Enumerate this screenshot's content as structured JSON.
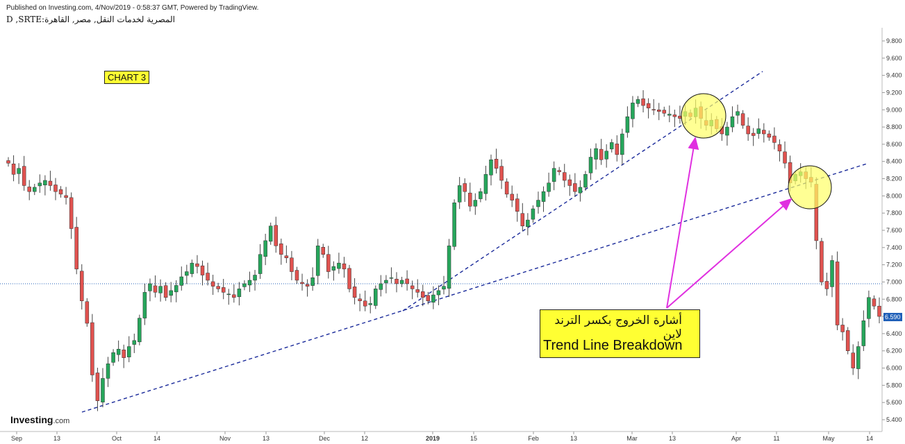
{
  "header": {
    "published": "Published on Investing.com, 4/Nov/2019 - 0:58:37 GMT, Powered by TradingView.",
    "symbol": "D ,SRTE:المصرية لخدمات النقل, مصر, القاهرة"
  },
  "labels": {
    "chart_tag": "CHART 3",
    "note_ar": "أشارة الخروج بكسر الترند لاين",
    "note_en": "Trend Line Breakdown",
    "logo_main": "Investing",
    "logo_suffix": ".com",
    "last_price": "6.590"
  },
  "colors": {
    "up": "#26a65b",
    "down": "#e0524f",
    "trend_line": "#1a2a9a",
    "arrow": "#e030e0",
    "highlight": "#ffff66",
    "price_line": "#1f5fb8"
  },
  "chart_data": {
    "type": "candlestick",
    "title": "",
    "ylabel": "",
    "xlabel": "",
    "ylim": [
      5.4,
      9.8
    ],
    "y_ticks": [
      "5.400",
      "5.600",
      "5.800",
      "6.000",
      "6.200",
      "6.400",
      "6.600",
      "6.800",
      "7.000",
      "7.200",
      "7.400",
      "7.600",
      "7.800",
      "8.000",
      "8.200",
      "8.400",
      "8.600",
      "8.800",
      "9.000",
      "9.200",
      "9.400",
      "9.600",
      "9.800"
    ],
    "x_ticks": [
      "Sep",
      "13",
      "Oct",
      "14",
      "Nov",
      "13",
      "Dec",
      "12",
      "2019",
      "15",
      "Feb",
      "13",
      "Mar",
      "13",
      "Apr",
      "11",
      "May",
      "14"
    ],
    "last_price": 6.59,
    "closes": [
      8.38,
      8.25,
      8.32,
      8.12,
      8.05,
      8.1,
      8.15,
      8.18,
      8.12,
      8.05,
      8.02,
      7.98,
      7.62,
      7.15,
      6.78,
      6.52,
      5.92,
      5.62,
      5.88,
      6.05,
      6.18,
      6.22,
      6.12,
      6.25,
      6.32,
      6.58,
      6.88,
      6.98,
      6.88,
      6.95,
      6.82,
      6.9,
      6.96,
      7.06,
      7.12,
      7.22,
      7.18,
      7.08,
      7.02,
      6.95,
      6.92,
      6.88,
      6.86,
      6.82,
      6.92,
      6.98,
      7.02,
      7.08,
      7.32,
      7.48,
      7.65,
      7.42,
      7.32,
      7.28,
      7.12,
      7.02,
      6.98,
      6.95,
      7.05,
      7.42,
      7.32,
      7.12,
      7.18,
      7.22,
      7.15,
      6.92,
      6.82,
      6.78,
      6.72,
      6.75,
      6.92,
      6.98,
      7.02,
      7.05,
      6.98,
      7.02,
      6.98,
      6.92,
      6.88,
      6.82,
      6.78,
      6.85,
      6.9,
      6.95,
      7.42,
      7.92,
      8.12,
      8.05,
      7.88,
      7.95,
      8.05,
      8.25,
      8.42,
      8.32,
      8.18,
      8.02,
      7.95,
      7.82,
      7.65,
      7.72,
      7.85,
      7.95,
      8.05,
      8.15,
      8.32,
      8.28,
      8.18,
      8.12,
      8.05,
      8.1,
      8.25,
      8.45,
      8.55,
      8.42,
      8.52,
      8.62,
      8.48,
      8.72,
      8.92,
      9.08,
      9.12,
      9.05,
      9.02,
      9.0,
      8.98,
      8.96,
      8.95,
      8.92,
      8.9,
      8.98,
      8.92,
      9.02,
      8.9,
      8.82,
      8.88,
      8.78,
      8.72,
      8.8,
      8.92,
      8.98,
      8.82,
      8.72,
      8.7,
      8.78,
      8.72,
      8.68,
      8.62,
      8.52,
      8.38,
      8.15,
      8.25,
      8.28,
      8.2,
      8.16,
      7.48,
      7.0,
      6.92,
      7.25,
      6.5,
      6.42,
      6.2,
      6.0,
      6.25,
      6.55,
      6.82,
      6.72,
      6.6
    ]
  }
}
